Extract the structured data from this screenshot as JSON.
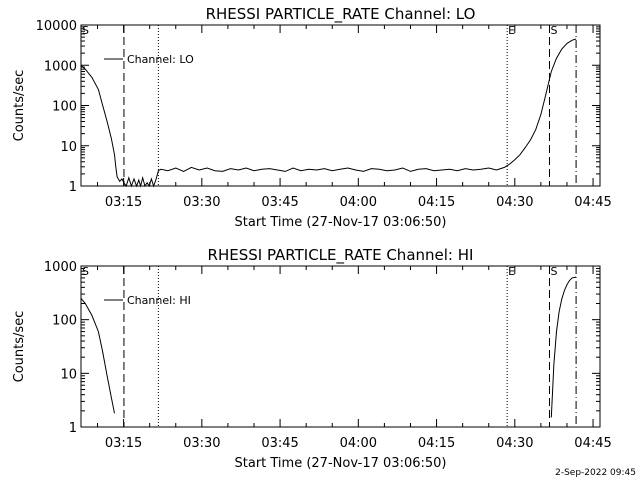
{
  "stamp": "2-Sep-2022 09:45",
  "chart_data": [
    {
      "type": "line",
      "title": "RHESSI PARTICLE_RATE Channel: LO",
      "xlabel": "Start Time (27-Nov-17 03:06:50)",
      "ylabel": "Counts/sec",
      "scale_y": "log",
      "xlim": [
        "03:06:50",
        "04:46:20"
      ],
      "ylim": [
        1,
        10000
      ],
      "xticks": [
        "03:15",
        "03:30",
        "03:45",
        "04:00",
        "04:15",
        "04:30",
        "04:45"
      ],
      "yticks": [
        "1",
        "10",
        "100",
        "1000",
        "10000"
      ],
      "legend": {
        "label": "Channel: LO",
        "position": "top-left"
      },
      "markers": [
        {
          "time": "03:15:04",
          "style": "dashed",
          "label": ""
        },
        {
          "time": "03:21:40",
          "style": "dotted",
          "label": ""
        },
        {
          "time": "04:28:32",
          "style": "dotted",
          "label": "E"
        },
        {
          "time": "04:36:39",
          "style": "dashed",
          "label": "S"
        },
        {
          "time": "04:41:45",
          "style": "dash-dot",
          "label": ""
        }
      ],
      "edge_labels": [
        "S"
      ],
      "series": [
        {
          "x": [
            "03:06:50",
            "03:07:40",
            "03:08:55",
            "03:10:10",
            "03:11:00",
            "03:11:50",
            "03:12:40",
            "03:13:15",
            "03:13:30",
            "03:13:45",
            "03:14:15",
            "03:14:40",
            "03:15:04",
            "03:15:30",
            "03:16:00",
            "03:16:30",
            "03:17:00",
            "03:17:30",
            "03:17:55",
            "03:18:15",
            "03:18:40",
            "03:19:05",
            "03:19:30",
            "03:19:55",
            "03:20:20",
            "03:20:45",
            "03:21:10",
            "03:21:40",
            "03:22:10",
            "03:23:30",
            "03:25:00",
            "03:26:30",
            "03:28:00",
            "03:29:30",
            "03:31:00",
            "03:32:30",
            "03:34:00",
            "03:35:30",
            "03:37:00",
            "03:38:30",
            "03:40:00",
            "03:41:30",
            "03:43:00",
            "03:44:30",
            "03:46:00",
            "03:47:30",
            "03:49:00",
            "03:50:30",
            "03:52:00",
            "03:53:30",
            "03:55:00",
            "03:56:30",
            "03:58:00",
            "03:59:30",
            "04:01:00",
            "04:02:30",
            "04:04:00",
            "04:05:30",
            "04:07:00",
            "04:08:30",
            "04:10:00",
            "04:11:30",
            "04:13:00",
            "04:14:30",
            "04:16:00",
            "04:17:30",
            "04:19:00",
            "04:20:30",
            "04:22:00",
            "04:23:30",
            "04:25:00",
            "04:26:30",
            "04:28:00",
            "04:29:00",
            "04:30:00",
            "04:31:00",
            "04:32:00",
            "04:33:00",
            "04:34:00",
            "04:35:00",
            "04:36:00",
            "04:37:00",
            "04:38:00",
            "04:39:00",
            "04:40:00",
            "04:41:00",
            "04:41:45"
          ],
          "values": [
            1000,
            800,
            500,
            250,
            100,
            40,
            15,
            6,
            3,
            1.7,
            1.3,
            1.5,
            1.2,
            1.0,
            1.6,
            1.0,
            1.5,
            1.0,
            1.4,
            1.0,
            1.6,
            1.0,
            1.2,
            1.0,
            1.5,
            1.0,
            1.4,
            2.4,
            2.6,
            2.4,
            2.8,
            2.3,
            2.9,
            2.5,
            2.8,
            2.4,
            2.3,
            2.7,
            2.5,
            2.8,
            2.4,
            2.6,
            2.7,
            2.5,
            2.3,
            2.8,
            2.4,
            2.6,
            2.5,
            2.7,
            2.4,
            2.6,
            2.8,
            2.5,
            2.3,
            2.7,
            2.6,
            2.4,
            2.5,
            2.8,
            2.3,
            2.6,
            2.7,
            2.4,
            2.5,
            2.6,
            2.4,
            2.7,
            2.5,
            2.6,
            2.8,
            2.5,
            2.9,
            3.5,
            4.5,
            6,
            9,
            14,
            25,
            60,
            200,
            700,
            1500,
            2500,
            3500,
            4200,
            4500
          ]
        }
      ]
    },
    {
      "type": "line",
      "title": "RHESSI PARTICLE_RATE Channel: HI",
      "xlabel": "Start Time (27-Nov-17 03:06:50)",
      "ylabel": "Counts/sec",
      "scale_y": "log",
      "xlim": [
        "03:06:50",
        "04:46:20"
      ],
      "ylim": [
        1,
        1000
      ],
      "xticks": [
        "03:15",
        "03:30",
        "03:45",
        "04:00",
        "04:15",
        "04:30",
        "04:45"
      ],
      "yticks": [
        "1",
        "10",
        "100",
        "1000"
      ],
      "legend": {
        "label": "Channel: HI",
        "position": "top-left"
      },
      "markers": [
        {
          "time": "03:15:04",
          "style": "dashed",
          "label": ""
        },
        {
          "time": "03:21:40",
          "style": "dotted",
          "label": ""
        },
        {
          "time": "04:28:32",
          "style": "dotted",
          "label": "E"
        },
        {
          "time": "04:36:39",
          "style": "dashed",
          "label": "S"
        },
        {
          "time": "04:41:45",
          "style": "dash-dot",
          "label": ""
        }
      ],
      "edge_labels": [
        "S"
      ],
      "series": [
        {
          "x": [
            "03:06:50",
            "03:07:40",
            "03:08:55",
            "03:10:10",
            "03:11:00",
            "03:11:50",
            "03:12:40",
            "03:13:15"
          ],
          "values": [
            250,
            200,
            120,
            60,
            25,
            9,
            3.5,
            1.8
          ]
        },
        {
          "x": [
            "04:37:00",
            "04:37:30",
            "04:38:00",
            "04:38:30",
            "04:39:00",
            "04:39:30",
            "04:40:00",
            "04:40:30",
            "04:41:00",
            "04:41:45"
          ],
          "values": [
            1.5,
            15,
            60,
            140,
            240,
            350,
            450,
            540,
            600,
            620
          ]
        }
      ]
    }
  ]
}
